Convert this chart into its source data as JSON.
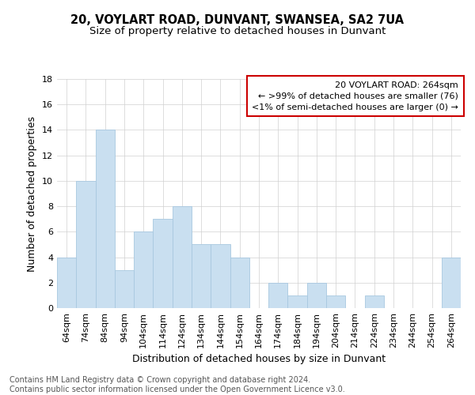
{
  "title1": "20, VOYLART ROAD, DUNVANT, SWANSEA, SA2 7UA",
  "title2": "Size of property relative to detached houses in Dunvant",
  "xlabel": "Distribution of detached houses by size in Dunvant",
  "ylabel": "Number of detached properties",
  "footer1": "Contains HM Land Registry data © Crown copyright and database right 2024.",
  "footer2": "Contains public sector information licensed under the Open Government Licence v3.0.",
  "categories": [
    "64sqm",
    "74sqm",
    "84sqm",
    "94sqm",
    "104sqm",
    "114sqm",
    "124sqm",
    "134sqm",
    "144sqm",
    "154sqm",
    "164sqm",
    "174sqm",
    "184sqm",
    "194sqm",
    "204sqm",
    "214sqm",
    "224sqm",
    "234sqm",
    "244sqm",
    "254sqm",
    "264sqm"
  ],
  "values": [
    4,
    10,
    14,
    3,
    6,
    7,
    8,
    5,
    5,
    4,
    0,
    2,
    1,
    2,
    1,
    0,
    1,
    0,
    0,
    0,
    4
  ],
  "bar_color": "#c9dff0",
  "bar_edge_color": "#a8c8e0",
  "annotation_text": "20 VOYLART ROAD: 264sqm\n← >99% of detached houses are smaller (76)\n<1% of semi-detached houses are larger (0) →",
  "annotation_box_color": "#ffffff",
  "annotation_box_edge_color": "#cc0000",
  "ylim": [
    0,
    18
  ],
  "yticks": [
    0,
    2,
    4,
    6,
    8,
    10,
    12,
    14,
    16,
    18
  ],
  "background_color": "#ffffff",
  "grid_color": "#d0d0d0",
  "title1_fontsize": 10.5,
  "title2_fontsize": 9.5,
  "axis_label_fontsize": 9,
  "tick_fontsize": 8,
  "annotation_fontsize": 8,
  "footer_fontsize": 7
}
